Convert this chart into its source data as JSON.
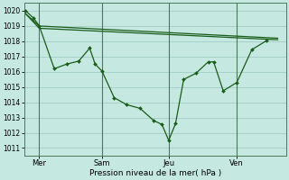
{
  "bg_color": "#c5e8e0",
  "grid_color": "#a0ccc5",
  "line_color": "#1a5c1a",
  "xlabel": "Pression niveau de la mer( hPa )",
  "ylim": [
    1010.5,
    1020.5
  ],
  "yticks": [
    1011,
    1012,
    1013,
    1014,
    1015,
    1016,
    1017,
    1018,
    1019,
    1020
  ],
  "xlim": [
    0.0,
    9.6
  ],
  "xtick_positions": [
    0.55,
    2.85,
    5.3,
    7.8
  ],
  "xtick_labels": [
    "Mer",
    "Sam",
    "Jeu",
    "Ven"
  ],
  "vline_positions": [
    0.55,
    2.85,
    5.3,
    7.8
  ],
  "s1x": [
    0.05,
    0.35,
    0.55,
    1.1,
    1.55,
    2.0,
    2.4,
    2.6,
    2.85,
    3.3,
    3.75,
    4.25,
    4.75,
    5.05,
    5.3,
    5.55,
    5.85,
    6.3,
    6.75,
    6.95,
    7.3,
    7.8,
    8.35,
    8.9
  ],
  "s1y": [
    1020.0,
    1019.5,
    1019.0,
    1016.2,
    1016.5,
    1016.7,
    1017.55,
    1016.5,
    1016.05,
    1014.3,
    1013.85,
    1013.6,
    1012.8,
    1012.55,
    1011.5,
    1012.6,
    1015.5,
    1015.9,
    1016.65,
    1016.65,
    1014.75,
    1015.3,
    1017.45,
    1018.05
  ],
  "s2x": [
    0.05,
    0.55,
    9.3
  ],
  "s2y": [
    1019.8,
    1019.0,
    1018.2
  ],
  "s3x": [
    0.05,
    0.55,
    9.3
  ],
  "s3y": [
    1019.8,
    1018.85,
    1018.1
  ]
}
